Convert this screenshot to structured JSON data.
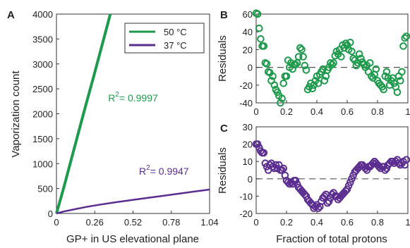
{
  "colors": {
    "green": "#1e9a4c",
    "purple": "#5b2d91",
    "axis": "#333333",
    "zero_line": "#555555"
  },
  "chart_data": [
    {
      "panel_label": "A",
      "type": "line",
      "xlabel": "GP+ in US elevational plane",
      "ylabel": "Vaporization count",
      "xlim": [
        0,
        1.04
      ],
      "ylim": [
        0,
        4000
      ],
      "xticks": [
        0,
        0.26,
        0.52,
        0.78,
        1.04
      ],
      "xtick_labels": [
        "0",
        "0.26",
        "0.52",
        "0.78",
        "1.04"
      ],
      "yticks": [
        0,
        500,
        1000,
        1500,
        2000,
        2500,
        3000,
        3500,
        4000
      ],
      "ytick_labels": [
        "0",
        "500",
        "1000",
        "1500",
        "2000",
        "2500",
        "3000",
        "3500",
        "4000"
      ],
      "legend": {
        "placement": "top-right",
        "entries": [
          "50 °C",
          "37 °C"
        ]
      },
      "series": [
        {
          "name": "50 °C",
          "color": "#1e9a4c",
          "points": [
            [
              0,
              0
            ],
            [
              0.05,
              520
            ],
            [
              0.1,
              1080
            ],
            [
              0.15,
              1630
            ],
            [
              0.2,
              2180
            ],
            [
              0.25,
              2720
            ],
            [
              0.3,
              3270
            ],
            [
              0.35,
              3820
            ],
            [
              0.365,
              4000
            ]
          ]
        },
        {
          "name": "37 °C",
          "color": "#5b2d91",
          "points": [
            [
              0,
              0
            ],
            [
              0.05,
              40
            ],
            [
              0.1,
              70
            ],
            [
              0.2,
              130
            ],
            [
              0.3,
              180
            ],
            [
              0.4,
              225
            ],
            [
              0.5,
              265
            ],
            [
              0.6,
              305
            ],
            [
              0.7,
              345
            ],
            [
              0.8,
              385
            ],
            [
              0.9,
              425
            ],
            [
              1.0,
              465
            ],
            [
              1.04,
              480
            ]
          ]
        }
      ],
      "annotations": [
        {
          "text_base": "R",
          "text_sup": "2",
          "text_rest": "= 0.9997",
          "color": "#1e9a4c",
          "x": 0.52,
          "y": 2250
        },
        {
          "text_base": "R",
          "text_sup": "2",
          "text_rest": "= 0.9947",
          "color": "#5b2d91",
          "x": 0.73,
          "y": 780
        }
      ]
    },
    {
      "panel_label": "B",
      "type": "scatter",
      "xlabel": "",
      "ylabel": "Residuals",
      "xlim": [
        0,
        1
      ],
      "ylim": [
        -40,
        60
      ],
      "xticks": [
        0,
        0.2,
        0.4,
        0.6,
        0.8,
        1.0
      ],
      "xtick_labels": [
        "0",
        "0.2",
        "0.4",
        "0.6",
        "0.8",
        "1"
      ],
      "yticks": [
        -40,
        -20,
        0,
        20,
        40,
        60
      ],
      "ytick_labels": [
        "-40",
        "-20",
        "0",
        "20",
        "40",
        "60"
      ],
      "zero_line": true,
      "marker": "open-circle",
      "color": "#1e9a4c",
      "x": [
        0.0,
        0.01,
        0.02,
        0.03,
        0.04,
        0.05,
        0.06,
        0.07,
        0.08,
        0.09,
        0.1,
        0.11,
        0.12,
        0.13,
        0.14,
        0.15,
        0.16,
        0.17,
        0.18,
        0.19,
        0.2,
        0.21,
        0.22,
        0.23,
        0.24,
        0.25,
        0.26,
        0.27,
        0.28,
        0.29,
        0.3,
        0.31,
        0.32,
        0.33,
        0.34,
        0.35,
        0.36,
        0.37,
        0.38,
        0.39,
        0.4,
        0.41,
        0.42,
        0.43,
        0.44,
        0.45,
        0.46,
        0.47,
        0.48,
        0.49,
        0.5,
        0.51,
        0.52,
        0.53,
        0.54,
        0.55,
        0.56,
        0.57,
        0.58,
        0.59,
        0.6,
        0.61,
        0.62,
        0.63,
        0.64,
        0.65,
        0.66,
        0.67,
        0.68,
        0.69,
        0.7,
        0.71,
        0.72,
        0.73,
        0.74,
        0.75,
        0.76,
        0.77,
        0.78,
        0.79,
        0.8,
        0.81,
        0.82,
        0.83,
        0.84,
        0.85,
        0.86,
        0.87,
        0.88,
        0.89,
        0.9,
        0.91,
        0.92,
        0.93,
        0.94,
        0.95,
        0.96,
        0.97,
        0.98,
        0.99
      ],
      "y": [
        61,
        60,
        44,
        32,
        24,
        24,
        5,
        4,
        -5,
        -6,
        -15,
        -10,
        -20,
        -25,
        -28,
        -32,
        -40,
        -35,
        -18,
        -10,
        -10,
        8,
        0,
        5,
        -2,
        3,
        3,
        5,
        12,
        22,
        20,
        12,
        2,
        -3,
        -25,
        -22,
        -18,
        -24,
        -20,
        -15,
        -10,
        -18,
        -8,
        -5,
        -2,
        -15,
        -10,
        -3,
        0,
        5,
        3,
        5,
        13,
        18,
        15,
        20,
        12,
        25,
        22,
        27,
        25,
        20,
        28,
        18,
        10,
        8,
        2,
        5,
        15,
        10,
        6,
        3,
        0,
        2,
        -5,
        5,
        -10,
        -12,
        -8,
        -2,
        -15,
        -18,
        -20,
        -22,
        -25,
        -10,
        -5,
        -12,
        -20,
        -15,
        -12,
        -18,
        -22,
        -28,
        -10,
        -15,
        -5,
        24,
        33,
        35
      ]
    },
    {
      "panel_label": "C",
      "type": "scatter",
      "xlabel": "Fraction of total protons",
      "ylabel": "Residuals",
      "xlim": [
        0,
        1
      ],
      "ylim": [
        -20,
        30
      ],
      "xticks": [
        0,
        0.2,
        0.4,
        0.6,
        0.8,
        1.0
      ],
      "xtick_labels": [
        "0",
        "0.2",
        "0.4",
        "0.6",
        "0.8",
        "1"
      ],
      "yticks": [
        -20,
        -10,
        0,
        10,
        20,
        30
      ],
      "ytick_labels": [
        "-20",
        "-10",
        "0",
        "10",
        "20",
        "30"
      ],
      "zero_line": true,
      "marker": "open-circle",
      "color": "#5b2d91",
      "x": [
        0.0,
        0.01,
        0.02,
        0.03,
        0.04,
        0.05,
        0.06,
        0.07,
        0.08,
        0.09,
        0.1,
        0.11,
        0.12,
        0.13,
        0.14,
        0.15,
        0.16,
        0.17,
        0.18,
        0.19,
        0.2,
        0.21,
        0.22,
        0.23,
        0.24,
        0.25,
        0.26,
        0.27,
        0.28,
        0.29,
        0.3,
        0.31,
        0.32,
        0.33,
        0.34,
        0.35,
        0.36,
        0.37,
        0.38,
        0.39,
        0.4,
        0.41,
        0.42,
        0.43,
        0.44,
        0.45,
        0.46,
        0.47,
        0.48,
        0.49,
        0.5,
        0.51,
        0.52,
        0.53,
        0.54,
        0.55,
        0.56,
        0.57,
        0.58,
        0.59,
        0.6,
        0.61,
        0.62,
        0.63,
        0.64,
        0.65,
        0.66,
        0.67,
        0.68,
        0.69,
        0.7,
        0.71,
        0.72,
        0.73,
        0.74,
        0.75,
        0.76,
        0.77,
        0.78,
        0.79,
        0.8,
        0.81,
        0.82,
        0.83,
        0.84,
        0.85,
        0.86,
        0.87,
        0.88,
        0.89,
        0.9,
        0.91,
        0.92,
        0.93,
        0.94,
        0.95,
        0.96,
        0.97,
        0.98,
        0.99
      ],
      "y": [
        20,
        20,
        18,
        16,
        15,
        15,
        9,
        7,
        5,
        8,
        9,
        7,
        6,
        8,
        6,
        8,
        5,
        5,
        6,
        2,
        -1,
        -2,
        -3,
        -2,
        -3,
        -1,
        -1,
        -3,
        -5,
        -6,
        -7,
        -8,
        -9,
        -10,
        -12,
        -13,
        -14,
        -15,
        -17,
        -16,
        -15,
        -17,
        -16,
        -13,
        -11,
        -10,
        -9,
        -14,
        -13,
        -11,
        -9,
        -8,
        -10,
        -10,
        -12,
        -11,
        -10,
        -9,
        -8,
        -7,
        -6,
        -4,
        -2,
        0,
        2,
        4,
        5,
        6,
        7,
        8,
        8,
        7,
        6,
        5,
        7,
        7,
        8,
        9,
        10,
        9,
        8,
        7,
        6,
        7,
        7,
        5,
        6,
        8,
        9,
        10,
        10,
        9,
        10,
        11,
        9,
        8,
        9,
        10,
        8,
        11
      ]
    }
  ]
}
